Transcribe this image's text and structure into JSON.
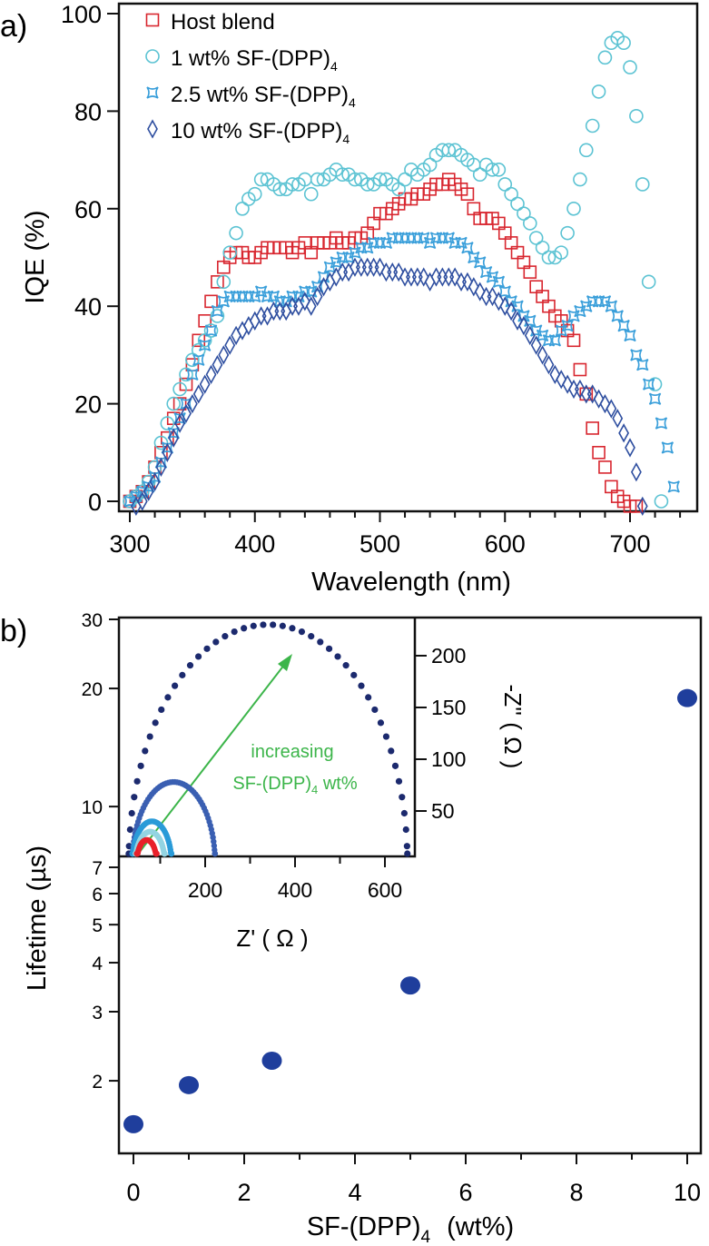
{
  "panel_labels": {
    "a": "a)",
    "b": "b)"
  },
  "chart_data": [
    {
      "type": "scatter",
      "xlabel": "Wavelength (nm)",
      "ylabel": "IQE (%)",
      "xlim": [
        295,
        745
      ],
      "ylim": [
        -2,
        102
      ],
      "xticks": [
        300,
        400,
        500,
        600,
        700
      ],
      "yticks": [
        0,
        20,
        40,
        60,
        80,
        100
      ],
      "legend_position": "top-left",
      "series": [
        {
          "name": "Host blend",
          "label": "Host blend",
          "label_sub": "",
          "marker": "square",
          "color": "#d8262f",
          "x_start": 300,
          "x_step": 5,
          "values": [
            0,
            1,
            2,
            4,
            7,
            10,
            13,
            17,
            20,
            24,
            28,
            33,
            37,
            41,
            45,
            48,
            50,
            51,
            51,
            50,
            50,
            51,
            52,
            52,
            52,
            52,
            51,
            52,
            53,
            51,
            53,
            53,
            53,
            54,
            53,
            53,
            54,
            54,
            55,
            57,
            59,
            59,
            60,
            61,
            62,
            62,
            63,
            63,
            64,
            65,
            65,
            66,
            65,
            64,
            63,
            60,
            58,
            58,
            58,
            57,
            55,
            53,
            51,
            49,
            47,
            44,
            42,
            40,
            38,
            37,
            35,
            33,
            27,
            22,
            15,
            10,
            7,
            3,
            1,
            0,
            -1,
            -1
          ]
        },
        {
          "name": "1 wt% SF-(DPP)4",
          "label": "1 wt% SF-(DPP)",
          "label_sub": "4",
          "marker": "circle",
          "color": "#5cc3d3",
          "x_start": 300,
          "x_step": 5,
          "values": [
            0,
            1,
            2,
            4,
            7,
            12,
            16,
            20,
            23,
            26,
            29,
            31,
            33,
            35,
            38,
            45,
            51,
            55,
            60,
            62,
            63,
            66,
            66,
            65,
            64,
            64,
            65,
            65,
            66,
            63,
            66,
            66,
            67,
            68,
            67,
            67,
            66,
            66,
            65,
            65,
            66,
            66,
            65,
            64,
            66,
            68,
            67,
            68,
            69,
            71,
            72,
            72,
            72,
            71,
            70,
            69,
            67,
            69,
            68,
            68,
            65,
            63,
            61,
            59,
            57,
            54,
            52,
            50,
            50,
            51,
            55,
            60,
            66,
            72,
            77,
            84,
            91,
            94,
            95,
            94,
            89,
            79,
            65,
            45,
            24,
            0
          ]
        },
        {
          "name": "2.5 wt% SF-(DPP)4",
          "label": "2.5 wt% SF-(DPP)",
          "label_sub": "4",
          "marker": "star",
          "color": "#3a9fda",
          "x_start": 300,
          "x_step": 5,
          "values": [
            0,
            1,
            2,
            3,
            5,
            8,
            11,
            14,
            17,
            20,
            26,
            29,
            32,
            35,
            39,
            41,
            42,
            42,
            42,
            42,
            42,
            43,
            42,
            42,
            41,
            41,
            42,
            42,
            43,
            43,
            44,
            46,
            48,
            49,
            50,
            50,
            51,
            52,
            52,
            53,
            53,
            53,
            54,
            54,
            54,
            54,
            54,
            54,
            53,
            54,
            54,
            54,
            53,
            53,
            52,
            50,
            49,
            47,
            46,
            45,
            43,
            41,
            40,
            38,
            37,
            35,
            34,
            33,
            33,
            35,
            36,
            38,
            39,
            40,
            41,
            41,
            41,
            40,
            38,
            36,
            34,
            30,
            28,
            24,
            21,
            16,
            11,
            3
          ]
        },
        {
          "name": "10 wt% SF-(DPP)4",
          "label": "10 wt% SF-(DPP)",
          "label_sub": "4",
          "marker": "diamond",
          "color": "#2f4fa0",
          "x_start": 305,
          "x_step": 5,
          "values": [
            -1,
            0,
            2,
            4,
            7,
            10,
            13,
            16,
            18,
            20,
            22,
            24,
            26,
            28,
            30,
            32,
            34,
            35,
            36,
            37,
            38,
            38,
            39,
            39,
            39,
            40,
            40,
            41,
            40,
            42,
            44,
            45,
            46,
            47,
            47,
            48,
            48,
            48,
            48,
            48,
            47,
            47,
            47,
            46,
            46,
            46,
            46,
            45,
            46,
            46,
            46,
            46,
            45,
            45,
            44,
            43,
            42,
            42,
            41,
            40,
            39,
            37,
            36,
            34,
            32,
            30,
            28,
            26,
            25,
            24,
            23,
            23,
            22,
            22,
            21,
            20,
            19,
            17,
            14,
            11,
            6,
            -1
          ]
        }
      ]
    },
    {
      "type": "scatter",
      "xlabel": "SF-(DPP)",
      "xlabel_sub": "4",
      "xlabel_unit": "(wt%)",
      "ylabel": "Lifetime (µs)",
      "yscale": "log",
      "xlim": [
        -0.3,
        10.3
      ],
      "ylim": [
        1.4,
        30
      ],
      "xticks": [
        0,
        2,
        4,
        6,
        8,
        10
      ],
      "yticks": [
        2,
        3,
        4,
        5,
        6,
        7,
        10,
        20,
        30
      ],
      "color": "#1f3e9c",
      "points": [
        {
          "x": 0,
          "y": 1.55
        },
        {
          "x": 1,
          "y": 1.95
        },
        {
          "x": 2.5,
          "y": 2.25
        },
        {
          "x": 5,
          "y": 3.5
        },
        {
          "x": 10,
          "y": 18.9
        }
      ]
    },
    {
      "type": "scatter",
      "inset": true,
      "xlabel": "Z' ( Ω )",
      "ylabel": "-Z'' ( Ω )",
      "xticks": [
        200,
        400,
        600
      ],
      "xticks_minor": [
        100,
        300,
        500
      ],
      "yticks": [
        50,
        100,
        150,
        200
      ],
      "annotation": {
        "line1": "increasing",
        "line2_main": "SF-(DPP)",
        "line2_sub": "4",
        "line2_end": " wt%",
        "color": "#3cb54a"
      },
      "series": [
        {
          "name": "10 wt%",
          "z_start": 30,
          "z_end": 650,
          "peak": 230,
          "n_points": 46,
          "color": "#1c2a6e"
        },
        {
          "name": "5 wt%",
          "z_start": 38,
          "z_end": 222,
          "peak": 78,
          "n_points": 60,
          "color": "#3a5fb2"
        },
        {
          "name": "2.5 wt%",
          "z_start": 38,
          "z_end": 125,
          "peak": 40,
          "n_points": 50,
          "color": "#2a9bd8"
        },
        {
          "name": "1 wt%",
          "z_start": 45,
          "z_end": 110,
          "peak": 30,
          "n_points": 45,
          "color": "#93d4e2"
        },
        {
          "name": "Host blend",
          "z_start": 48,
          "z_end": 92,
          "peak": 22,
          "n_points": 40,
          "color": "#e8202a"
        }
      ]
    }
  ]
}
